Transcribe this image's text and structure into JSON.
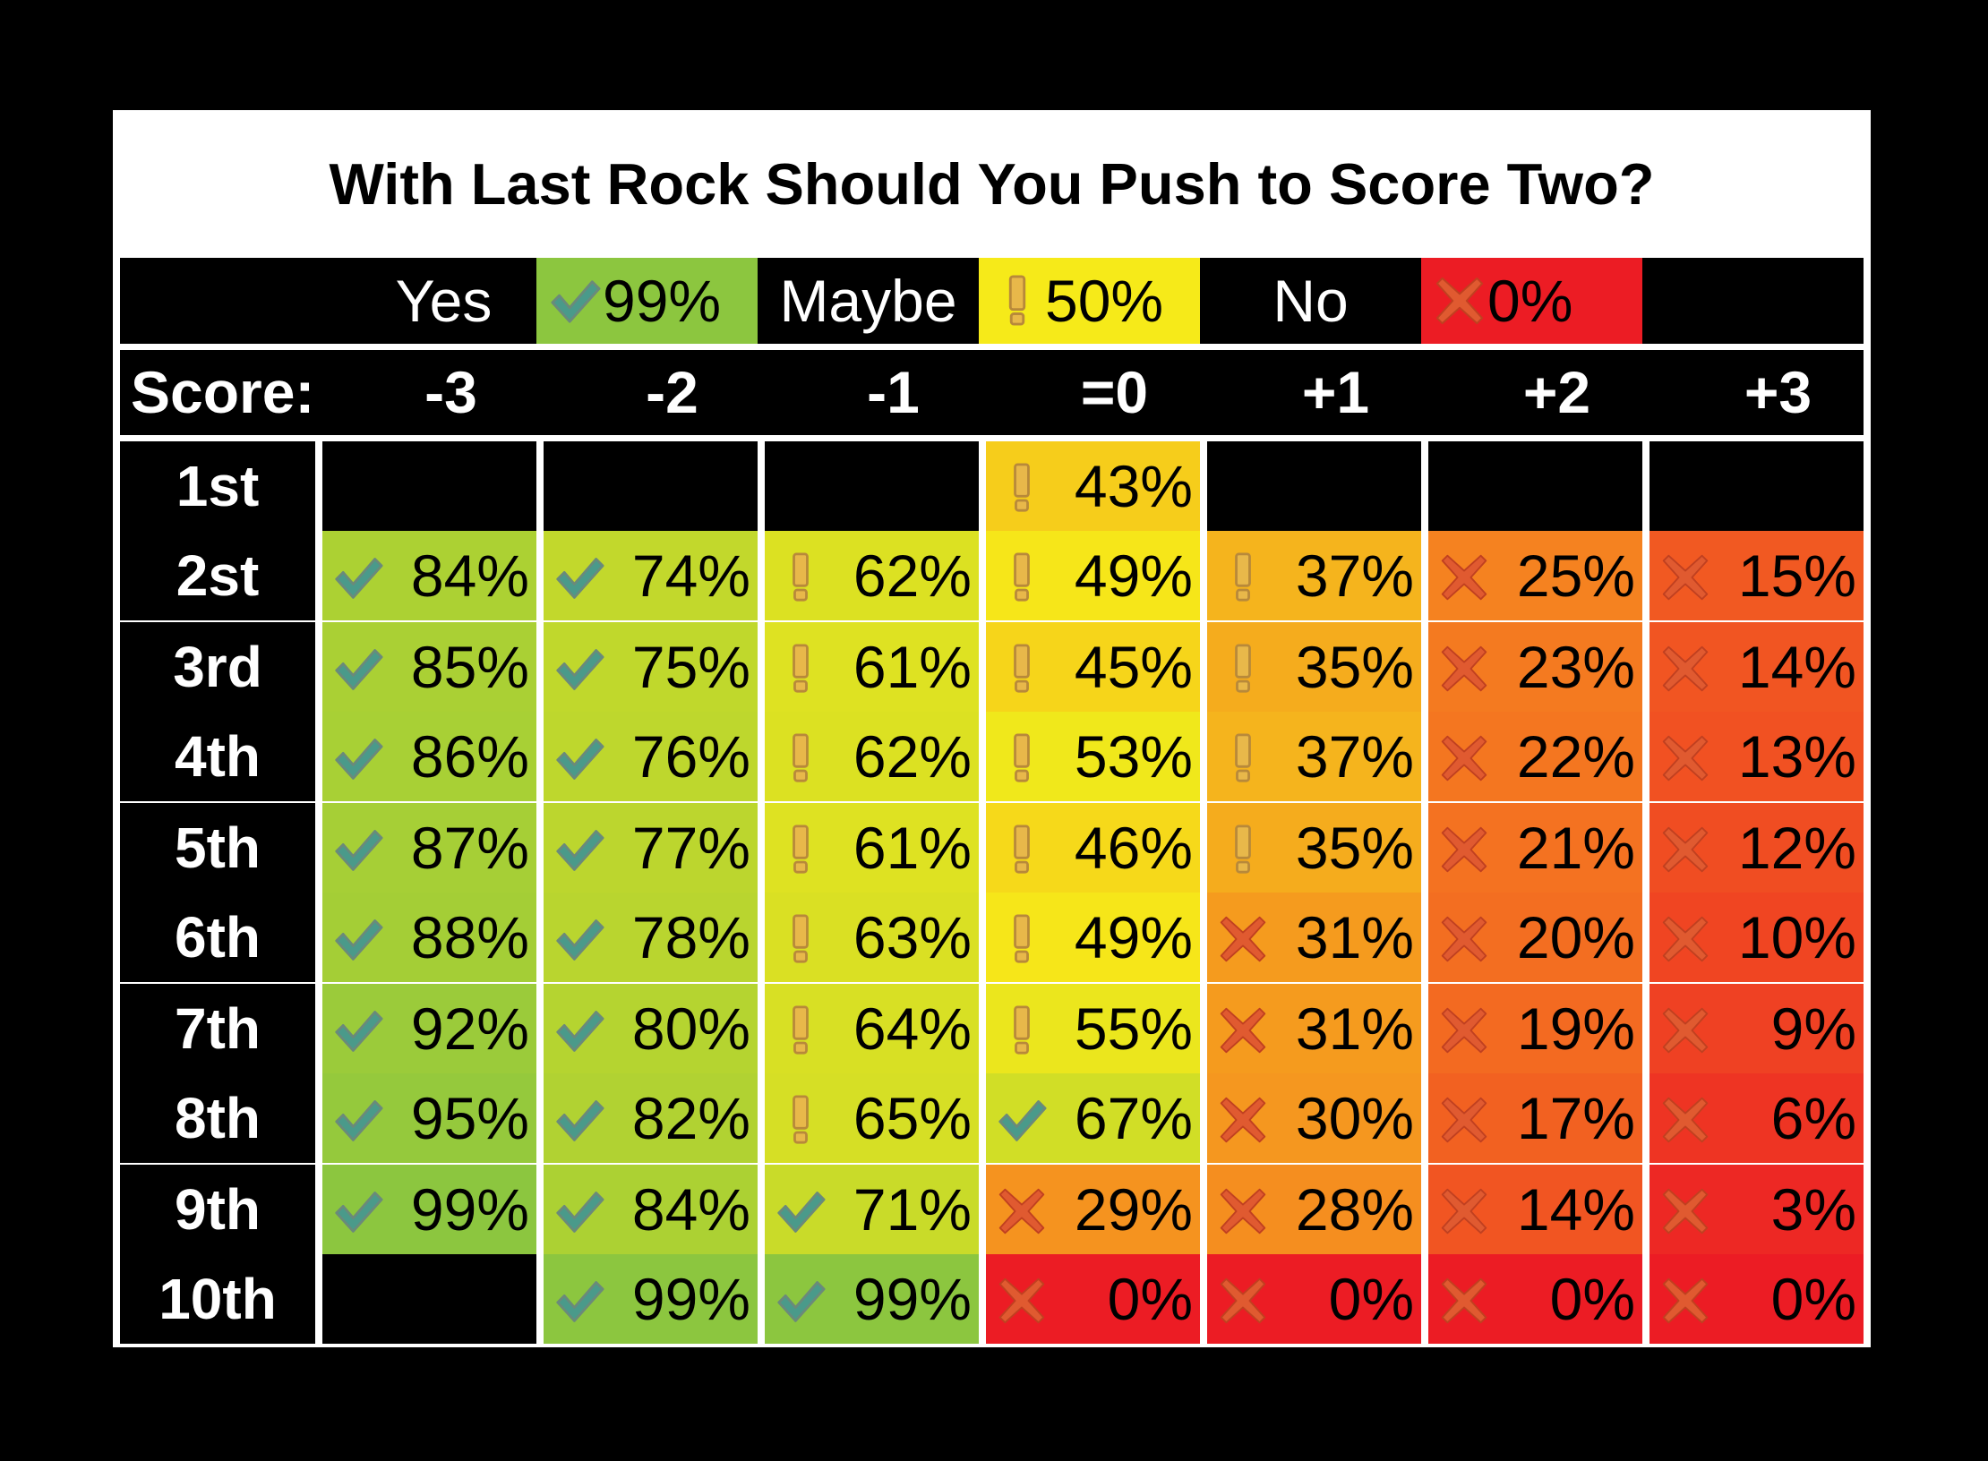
{
  "title": "With Last Rock Should You Push to Score Two?",
  "legend": [
    {
      "label": "Yes",
      "swatch": "99%",
      "icon": "checkmark-icon",
      "color": "#8cc63f"
    },
    {
      "label": "Maybe",
      "swatch": "50%",
      "icon": "exclamation-icon",
      "color": "#f6ea19"
    },
    {
      "label": "No",
      "swatch": "0%",
      "icon": "cross-icon",
      "color": "#ec1c24"
    }
  ],
  "score_label": "Score:",
  "columns": [
    "-3",
    "-2",
    "-1",
    "=0",
    "+1",
    "+2",
    "+3"
  ],
  "rows": [
    "1st",
    "2st",
    "3rd",
    "4th",
    "5th",
    "6th",
    "7th",
    "8th",
    "9th",
    "10th"
  ],
  "colors": {
    "background": "#000000",
    "panel": "#ffffff",
    "yes": "#8cc63f",
    "maybe": "#f6ea19",
    "no": "#ec1c24"
  },
  "chart_data": {
    "type": "heatmap",
    "title": "With Last Rock Should You Push to Score Two?",
    "xlabel": "Score:",
    "x": [
      "-3",
      "-2",
      "-1",
      "=0",
      "+1",
      "+2",
      "+3"
    ],
    "y": [
      "1st",
      "2st",
      "3rd",
      "4th",
      "5th",
      "6th",
      "7th",
      "8th",
      "9th",
      "10th"
    ],
    "values": [
      [
        null,
        null,
        null,
        43,
        null,
        null,
        null
      ],
      [
        84,
        74,
        62,
        49,
        37,
        25,
        15
      ],
      [
        85,
        75,
        61,
        45,
        35,
        23,
        14
      ],
      [
        86,
        76,
        62,
        53,
        37,
        22,
        13
      ],
      [
        87,
        77,
        61,
        46,
        35,
        21,
        12
      ],
      [
        88,
        78,
        63,
        49,
        31,
        20,
        10
      ],
      [
        92,
        80,
        64,
        55,
        31,
        19,
        9
      ],
      [
        95,
        82,
        65,
        67,
        30,
        17,
        6
      ],
      [
        99,
        84,
        71,
        29,
        28,
        14,
        3
      ],
      [
        null,
        99,
        99,
        0,
        0,
        0,
        0
      ]
    ],
    "unit": "%",
    "color_scale": {
      "0": "#ec1c24",
      "50": "#f6ea19",
      "99": "#8cc63f"
    },
    "legend_placement": "top"
  }
}
